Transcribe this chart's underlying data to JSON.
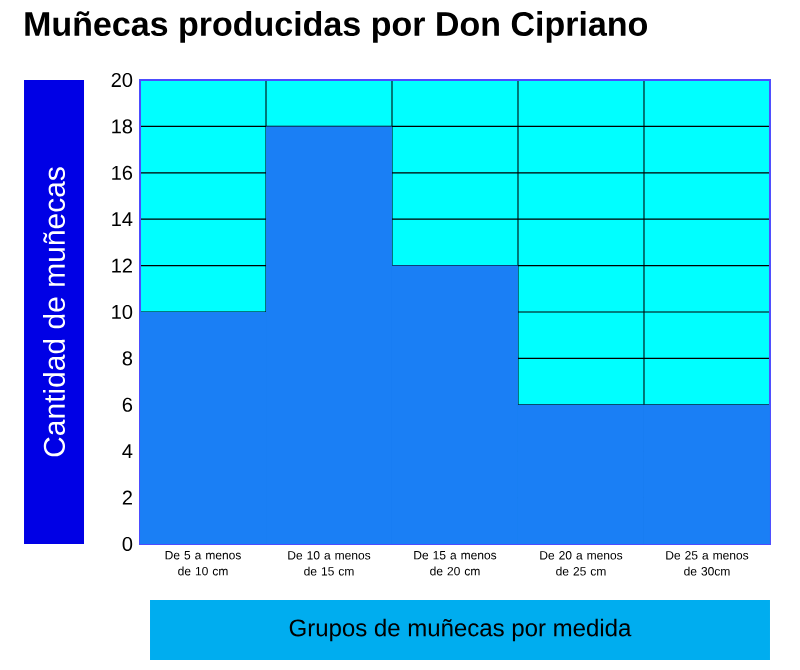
{
  "chart_data": {
    "type": "bar",
    "title": "Muñecas producidas por Don Cipriano",
    "xlabel": "Grupos de muñecas por medida",
    "ylabel": "Cantidad de muñecas",
    "categories": [
      "De 5 a menos de 10 cm",
      "De 10 a menos de 15 cm",
      "De 15 a menos de 20 cm",
      "De 20 a menos de 25 cm",
      "De 25 a menos de 30cm"
    ],
    "values": [
      10,
      18,
      12,
      6,
      6
    ],
    "color": "#1a7ff5",
    "bands": [
      {
        "axis": "y",
        "from": 0,
        "to": 20,
        "color": "#00ffff"
      }
    ],
    "ylim": [
      0,
      20
    ],
    "yticks": [
      0,
      2,
      4,
      6,
      8,
      10,
      12,
      14,
      16,
      18,
      20
    ],
    "grid": true
  }
}
